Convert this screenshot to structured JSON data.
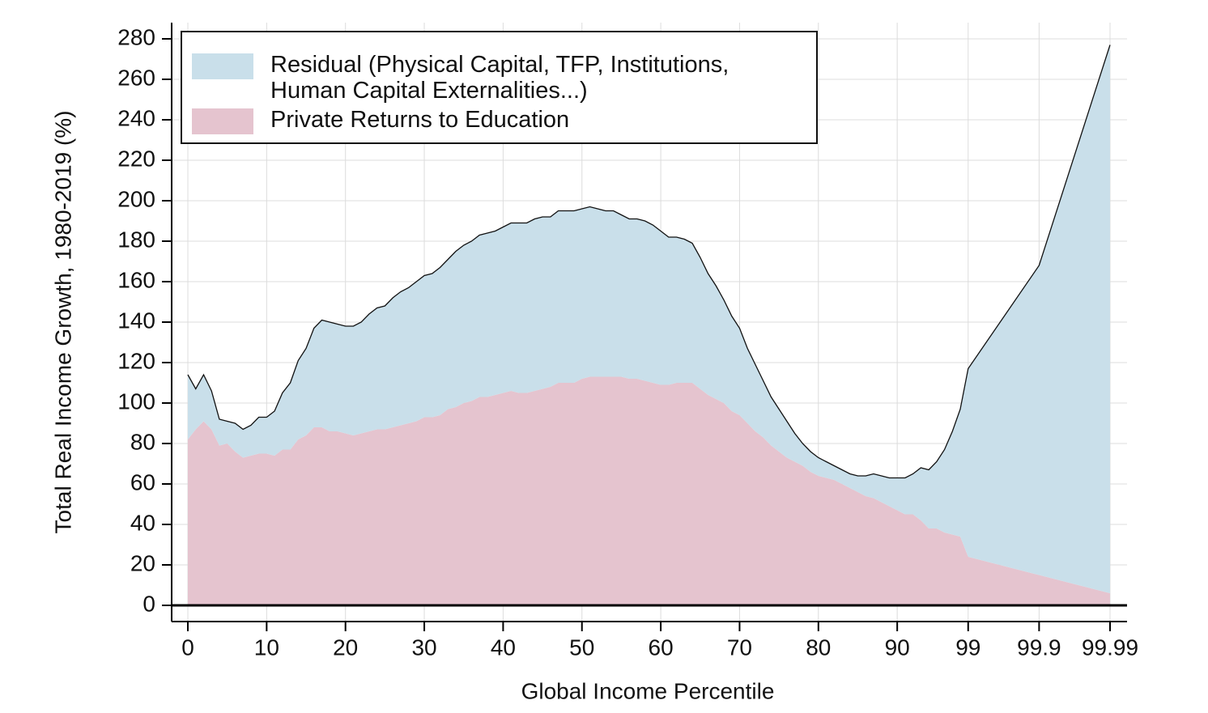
{
  "chart_data": {
    "type": "stacked_area",
    "x_label": "Global Income Percentile",
    "y_label": "Total Real Income Growth, 1980-2019 (%)",
    "x": [
      0,
      1,
      2,
      3,
      4,
      5,
      6,
      7,
      8,
      9,
      10,
      11,
      12,
      13,
      14,
      15,
      16,
      17,
      18,
      19,
      20,
      21,
      22,
      23,
      24,
      25,
      26,
      27,
      28,
      29,
      30,
      31,
      32,
      33,
      34,
      35,
      36,
      37,
      38,
      39,
      40,
      41,
      42,
      43,
      44,
      45,
      46,
      47,
      48,
      49,
      50,
      51,
      52,
      53,
      54,
      55,
      56,
      57,
      58,
      59,
      60,
      61,
      62,
      63,
      64,
      65,
      66,
      67,
      68,
      69,
      70,
      71,
      72,
      73,
      74,
      75,
      76,
      77,
      78,
      79,
      80,
      81,
      82,
      83,
      84,
      85,
      86,
      87,
      88,
      89,
      90,
      91,
      92,
      93,
      94,
      95,
      96,
      97,
      98,
      99,
      99.9,
      99.99
    ],
    "series": [
      {
        "name": "Residual (Physical Capital, TFP, Institutions, Human Capital Externalities...)",
        "color": "#c9dfea",
        "values": [
          32,
          20,
          23,
          19,
          13,
          11,
          14,
          14,
          15,
          18,
          18,
          22,
          28,
          33,
          39,
          43,
          49,
          53,
          54,
          53,
          53,
          54,
          55,
          58,
          60,
          61,
          64,
          66,
          67,
          69,
          70,
          71,
          73,
          74,
          77,
          78,
          79,
          80,
          81,
          81,
          82,
          83,
          84,
          84,
          85,
          85,
          84,
          85,
          85,
          85,
          84,
          84,
          83,
          82,
          82,
          80,
          79,
          79,
          79,
          78,
          76,
          73,
          72,
          71,
          69,
          65,
          60,
          56,
          51,
          47,
          43,
          37,
          33,
          28,
          24,
          21,
          18,
          14,
          11,
          10,
          9,
          8,
          7,
          7,
          7,
          8,
          10,
          12,
          13,
          14,
          16,
          18,
          20,
          26,
          29,
          33,
          41,
          51,
          63,
          93,
          153,
          271
        ]
      },
      {
        "name": "Private Returns to Education",
        "color": "#e5c4cf",
        "values": [
          82,
          87,
          91,
          87,
          79,
          80,
          76,
          73,
          74,
          75,
          75,
          74,
          77,
          77,
          82,
          84,
          88,
          88,
          86,
          86,
          85,
          84,
          85,
          86,
          87,
          87,
          88,
          89,
          90,
          91,
          93,
          93,
          94,
          97,
          98,
          100,
          101,
          103,
          103,
          104,
          105,
          106,
          105,
          105,
          106,
          107,
          108,
          110,
          110,
          110,
          112,
          113,
          113,
          113,
          113,
          113,
          112,
          112,
          111,
          110,
          109,
          109,
          110,
          110,
          110,
          107,
          104,
          102,
          100,
          96,
          94,
          90,
          86,
          83,
          79,
          76,
          73,
          71,
          69,
          66,
          64,
          63,
          62,
          60,
          58,
          56,
          54,
          53,
          51,
          49,
          47,
          45,
          45,
          42,
          38,
          38,
          36,
          35,
          34,
          24,
          15,
          6
        ]
      }
    ],
    "xlim": [
      0,
      99.99
    ],
    "xticks": [
      0,
      10,
      20,
      30,
      40,
      50,
      60,
      70,
      80,
      90,
      99,
      99.9,
      99.99
    ],
    "ylim": [
      -8,
      288
    ],
    "yticks": [
      0,
      20,
      40,
      60,
      80,
      100,
      120,
      140,
      160,
      180,
      200,
      220,
      240,
      260,
      280
    ],
    "grid": true,
    "legend": "top-left"
  }
}
